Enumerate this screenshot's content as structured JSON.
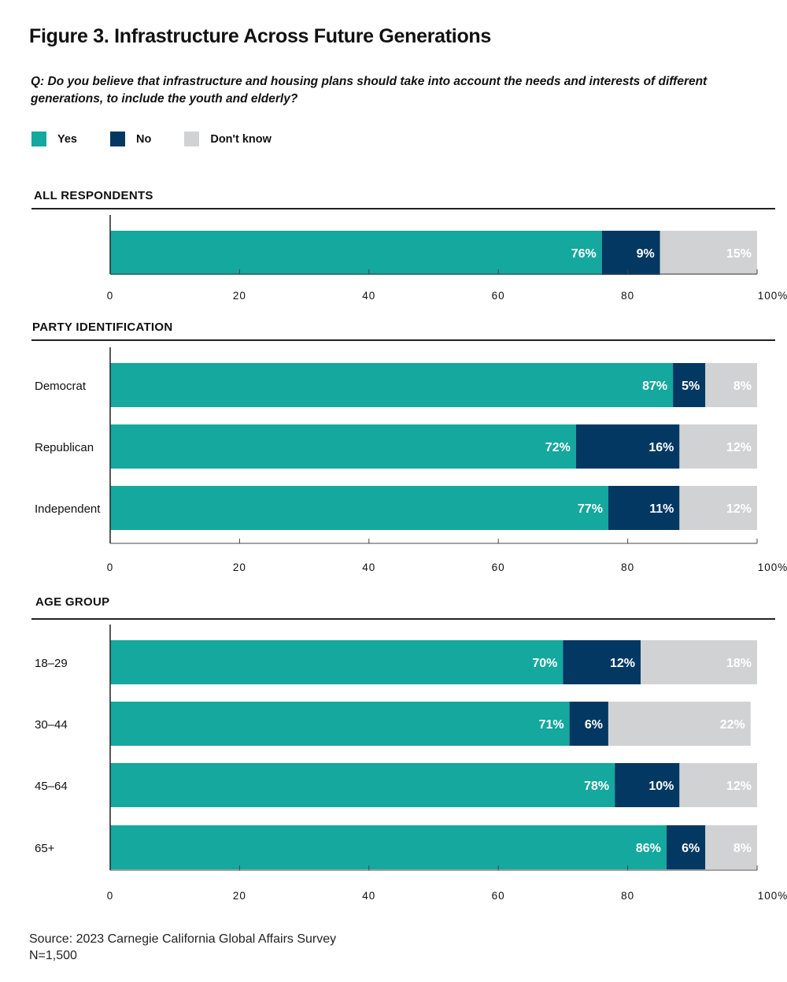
{
  "title": "Figure 3. Infrastructure Across Future Generations",
  "question": "Q: Do you believe that infrastructure and housing plans should take into account the needs and interests of different generations, to include the youth and elderly?",
  "legend": [
    {
      "label": "Yes",
      "color": "#14A89E"
    },
    {
      "label": "No",
      "color": "#033863"
    },
    {
      "label": "Don't know",
      "color": "#D1D2D4"
    }
  ],
  "source": "Source: 2023 Carnegie California Global Affairs Survey",
  "sample": "N=1,500",
  "chart_data": [
    {
      "type": "bar",
      "title": "ALL RESPONDENTS",
      "stacked": true,
      "orientation": "horizontal",
      "categories": [
        ""
      ],
      "series": [
        {
          "name": "Yes",
          "values": [
            76
          ]
        },
        {
          "name": "No",
          "values": [
            9
          ]
        },
        {
          "name": "Don't know",
          "values": [
            15
          ]
        }
      ],
      "xlim": [
        0,
        100
      ],
      "xticks": [
        "0",
        "20",
        "40",
        "60",
        "80",
        "100%"
      ]
    },
    {
      "type": "bar",
      "title": "PARTY IDENTIFICATION",
      "stacked": true,
      "orientation": "horizontal",
      "categories": [
        "Democrat",
        "Republican",
        "Independent"
      ],
      "series": [
        {
          "name": "Yes",
          "values": [
            87,
            72,
            77
          ]
        },
        {
          "name": "No",
          "values": [
            5,
            16,
            11
          ]
        },
        {
          "name": "Don't know",
          "values": [
            8,
            12,
            12
          ]
        }
      ],
      "xlim": [
        0,
        100
      ],
      "xticks": [
        "0",
        "20",
        "40",
        "60",
        "80",
        "100%"
      ]
    },
    {
      "type": "bar",
      "title": "AGE GROUP",
      "stacked": true,
      "orientation": "horizontal",
      "categories": [
        "18–29",
        "30–44",
        "45–64",
        "65+"
      ],
      "series": [
        {
          "name": "Yes",
          "values": [
            70,
            71,
            78,
            86
          ]
        },
        {
          "name": "No",
          "values": [
            12,
            6,
            10,
            6
          ]
        },
        {
          "name": "Don't know",
          "values": [
            18,
            22,
            12,
            8
          ]
        }
      ],
      "xlim": [
        0,
        100
      ],
      "xticks": [
        "0",
        "20",
        "40",
        "60",
        "80",
        "100%"
      ]
    }
  ]
}
